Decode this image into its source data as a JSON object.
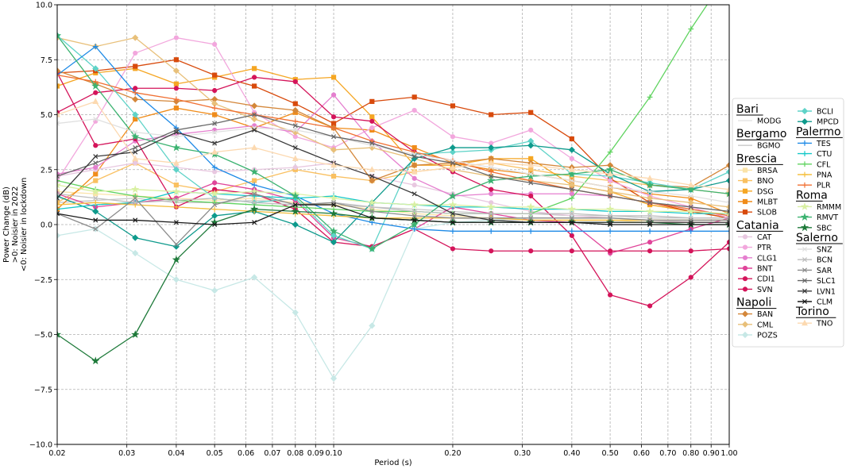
{
  "chart_data": {
    "type": "line",
    "xlabel": "Period (s)",
    "ylabel_lines": [
      "Power Change (dB)",
      ">0: Noisier in 2022",
      "<0: Noisier in lockdown"
    ],
    "x_scale": "log",
    "xlim": [
      0.02,
      1.0
    ],
    "ylim": [
      -10.0,
      10.0
    ],
    "grid": true,
    "x": [
      0.02,
      0.025,
      0.0315,
      0.04,
      0.05,
      0.063,
      0.08,
      0.1,
      0.125,
      0.16,
      0.2,
      0.25,
      0.315,
      0.4,
      0.5,
      0.63,
      0.8,
      1.0
    ],
    "x_ticks": [
      {
        "v": 0.02,
        "label": "0.02"
      },
      {
        "v": 0.03,
        "label": "0.03"
      },
      {
        "v": 0.04,
        "label": "0.04"
      },
      {
        "v": 0.05,
        "label": "0.05"
      },
      {
        "v": 0.06,
        "label": "0.06"
      },
      {
        "v": 0.07,
        "label": "0.07"
      },
      {
        "v": 0.08,
        "label": "0.08"
      },
      {
        "v": 0.09,
        "label": "0.09"
      },
      {
        "v": 0.1,
        "label": "0.10"
      },
      {
        "v": 0.2,
        "label": "0.20"
      },
      {
        "v": 0.3,
        "label": "0.30"
      },
      {
        "v": 0.4,
        "label": "0.40"
      },
      {
        "v": 0.5,
        "label": "0.50"
      },
      {
        "v": 0.6,
        "label": "0.60"
      },
      {
        "v": 0.7,
        "label": "0.70"
      },
      {
        "v": 0.8,
        "label": "0.80"
      },
      {
        "v": 0.9,
        "label": "0.90"
      },
      {
        "v": 1.0,
        "label": "1.00"
      }
    ],
    "y_ticks": [
      {
        "v": 10,
        "label": "10.0"
      },
      {
        "v": 7.5,
        "label": "7.5"
      },
      {
        "v": 5,
        "label": "5.0"
      },
      {
        "v": 2.5,
        "label": "2.5"
      },
      {
        "v": 0,
        "label": "0.0"
      },
      {
        "v": -2.5,
        "label": "−2.5"
      },
      {
        "v": -5,
        "label": "−5.0"
      },
      {
        "v": -7.5,
        "label": "−7.5"
      },
      {
        "v": -10,
        "label": "−10.0"
      }
    ],
    "legend_placement": "right, outside",
    "groups": [
      {
        "name": "Bari",
        "series": [
          {
            "name": "MODG",
            "color": "#e6e6e6",
            "marker": "none",
            "values": [
              1.2,
              1.0,
              0.9,
              0.8,
              0.7,
              0.6,
              0.5,
              0.4,
              0.3,
              0.3,
              0.3,
              0.2,
              0.2,
              0.2,
              0.2,
              0.2,
              0.1,
              0.1
            ]
          }
        ]
      },
      {
        "name": "Bergamo",
        "series": [
          {
            "name": "BGMO",
            "color": "#c8c8c8",
            "marker": "none",
            "values": [
              1.0,
              1.1,
              1.2,
              1.0,
              1.0,
              1.1,
              1.0,
              0.9,
              0.8,
              0.7,
              0.6,
              0.5,
              0.5,
              0.4,
              0.4,
              0.3,
              0.3,
              0.3
            ]
          }
        ]
      },
      {
        "name": "Brescia",
        "series": [
          {
            "name": "BRSA",
            "color": "#fbe3a8",
            "marker": "square",
            "values": [
              1.5,
              1.4,
              1.3,
              1.2,
              1.1,
              1.2,
              1.0,
              0.9,
              0.7,
              0.5,
              0.4,
              0.3,
              0.2,
              0.2,
              0.2,
              0.1,
              0.1,
              0.1
            ]
          },
          {
            "name": "BNO",
            "color": "#f9c061",
            "marker": "square",
            "values": [
              1.0,
              2.0,
              2.8,
              1.8,
              1.5,
              2.0,
              2.5,
              2.2,
              2.0,
              2.4,
              2.6,
              2.8,
              2.5,
              2.2,
              2.0,
              1.8,
              1.6,
              1.4
            ]
          },
          {
            "name": "DSG",
            "color": "#f5a623",
            "marker": "square",
            "values": [
              6.3,
              6.9,
              7.1,
              6.4,
              6.7,
              7.1,
              6.6,
              6.7,
              4.9,
              2.7,
              2.7,
              3.0,
              3.0,
              1.8,
              1.5,
              0.9,
              0.6,
              0.3
            ]
          },
          {
            "name": "MLBT",
            "color": "#f08c1a",
            "marker": "square",
            "values": [
              0.7,
              2.3,
              4.8,
              5.3,
              5.0,
              4.4,
              5.1,
              4.4,
              4.3,
              3.5,
              2.8,
              2.5,
              2.3,
              2.0,
              1.7,
              1.4,
              1.2,
              0.5
            ]
          },
          {
            "name": "SLOB",
            "color": "#d84a0c",
            "marker": "square",
            "values": [
              6.9,
              7.0,
              7.2,
              7.5,
              6.8,
              6.3,
              5.5,
              4.6,
              5.6,
              5.8,
              5.4,
              5.0,
              5.1,
              3.9,
              2.1,
              1.0,
              0.6,
              0.3
            ]
          }
        ]
      },
      {
        "name": "Catania",
        "series": [
          {
            "name": "CAT",
            "color": "#e8c8e0",
            "marker": "circle",
            "values": [
              2.2,
              2.5,
              2.8,
              2.6,
              2.4,
              2.5,
              2.6,
              2.8,
              2.2,
              1.8,
              1.4,
              1.0,
              0.6,
              0.4,
              0.3,
              0.2,
              0.1,
              0.1
            ]
          },
          {
            "name": "PTR",
            "color": "#f2a7dd",
            "marker": "circle",
            "values": [
              2.0,
              4.7,
              7.8,
              8.5,
              8.2,
              5.1,
              4.0,
              3.5,
              4.4,
              5.2,
              4.0,
              3.7,
              4.3,
              3.0,
              2.0,
              1.3,
              0.8,
              0.3
            ]
          },
          {
            "name": "CLG1",
            "color": "#e57fcf",
            "marker": "circle",
            "values": [
              2.3,
              2.6,
              3.8,
              4.1,
              4.3,
              4.5,
              4.2,
              5.9,
              3.8,
              2.1,
              1.3,
              1.4,
              1.4,
              1.4,
              1.3,
              1.0,
              0.7,
              0.4
            ]
          },
          {
            "name": "BNT",
            "color": "#e0459a",
            "marker": "circle",
            "values": [
              1.4,
              0.8,
              1.0,
              1.2,
              1.9,
              1.6,
              1.1,
              -0.6,
              -1.0,
              -0.2,
              0.8,
              0.5,
              0.2,
              0.1,
              -1.3,
              -0.8,
              -0.2,
              0.3
            ]
          },
          {
            "name": "CDI1",
            "color": "#d4145a",
            "marker": "circle",
            "values": [
              6.9,
              3.6,
              3.9,
              0.8,
              1.6,
              1.4,
              0.7,
              -0.8,
              -1.0,
              -0.2,
              -1.1,
              -1.2,
              -1.2,
              -1.2,
              -1.2,
              -1.2,
              -1.2,
              -1.1
            ]
          },
          {
            "name": "SVN",
            "color": "#d4145a",
            "marker": "circle",
            "values": [
              5.1,
              6.0,
              6.2,
              6.2,
              6.1,
              6.7,
              6.5,
              4.9,
              4.7,
              3.3,
              2.4,
              1.6,
              1.3,
              -0.5,
              -3.2,
              -3.7,
              -2.4,
              -0.8
            ]
          }
        ]
      },
      {
        "name": "Napoli",
        "series": [
          {
            "name": "BAN",
            "color": "#d4873a",
            "marker": "diamond",
            "values": [
              7.0,
              6.4,
              5.7,
              5.6,
              5.7,
              5.4,
              5.2,
              4.4,
              2.0,
              2.7,
              2.8,
              3.0,
              2.8,
              2.6,
              2.7,
              1.8,
              1.7,
              2.7
            ]
          },
          {
            "name": "CML",
            "color": "#e8c07a",
            "marker": "diamond",
            "values": [
              8.5,
              8.1,
              8.5,
              7.0,
              5.5,
              4.8,
              4.2,
              3.4,
              3.5,
              3.0,
              2.5,
              2.2,
              2.0,
              1.8,
              1.5,
              1.2,
              1.0,
              0.8
            ]
          },
          {
            "name": "POZS",
            "color": "#c7e8e6",
            "marker": "diamond",
            "values": [
              -0.5,
              -0.2,
              -1.3,
              -2.5,
              -3.0,
              -2.4,
              -4.0,
              -7.0,
              -4.6,
              -0.2,
              0.1,
              0.2,
              0.3,
              0.3,
              0.3,
              0.2,
              0.2,
              0.2
            ]
          },
          {
            "name": "BCLI",
            "color": "#5fd3c8",
            "marker": "diamond",
            "values": [
              8.6,
              7.1,
              5.0,
              2.5,
              1.2,
              1.0,
              1.2,
              -0.5,
              -1.1,
              3.2,
              3.3,
              3.4,
              3.8,
              2.3,
              2.2,
              1.9,
              1.6,
              2.4
            ]
          },
          {
            "name": "MPCD",
            "color": "#0e9a8c",
            "marker": "diamond",
            "values": [
              1.3,
              0.6,
              -0.6,
              -1.0,
              0.4,
              0.6,
              0.0,
              -0.8,
              1.0,
              3.0,
              3.5,
              3.5,
              3.6,
              3.4,
              2.3,
              1.5,
              1.6,
              2.0
            ]
          }
        ]
      },
      {
        "name": "Palermo",
        "series": [
          {
            "name": "TES",
            "color": "#1e8ae6",
            "marker": "plus",
            "values": [
              6.8,
              8.1,
              6.0,
              4.4,
              2.6,
              1.8,
              1.3,
              0.5,
              0.1,
              -0.2,
              -0.3,
              -0.3,
              -0.3,
              -0.3,
              -0.3,
              -0.3,
              -0.3,
              -0.3
            ]
          },
          {
            "name": "CTU",
            "color": "#14c8c8",
            "marker": "plus",
            "values": [
              0.7,
              0.9,
              1.0,
              1.5,
              1.4,
              1.3,
              1.2,
              1.3,
              1.0,
              0.9,
              0.8,
              0.8,
              0.7,
              0.7,
              0.6,
              0.6,
              0.5,
              0.5
            ]
          },
          {
            "name": "CFL",
            "color": "#5fd35f",
            "marker": "plus",
            "values": [
              2.0,
              1.6,
              1.3,
              1.1,
              1.0,
              0.9,
              0.8,
              0.7,
              0.6,
              0.6,
              0.5,
              0.5,
              0.5,
              1.2,
              3.3,
              5.8,
              8.9,
              11.5
            ]
          },
          {
            "name": "PNA",
            "color": "#f5c040",
            "marker": "plus",
            "values": [
              0.9,
              1.0,
              0.9,
              0.8,
              0.7,
              0.6,
              0.5,
              0.4,
              0.3,
              0.3,
              0.3,
              0.3,
              0.2,
              0.2,
              0.2,
              0.2,
              0.2,
              0.2
            ]
          },
          {
            "name": "PLR",
            "color": "#f07033",
            "marker": "plus",
            "values": [
              6.8,
              6.5,
              6.0,
              5.7,
              5.3,
              5.0,
              4.7,
              4.4,
              3.8,
              3.3,
              2.9,
              2.4,
              2.0,
              1.6,
              1.3,
              1.0,
              0.7,
              0.4
            ]
          }
        ]
      },
      {
        "name": "Roma",
        "series": [
          {
            "name": "RMMM",
            "color": "#d9f0a3",
            "marker": "star",
            "values": [
              1.8,
              1.5,
              1.6,
              1.5,
              1.4,
              1.5,
              1.4,
              1.2,
              1.0,
              0.9,
              0.9,
              0.8,
              0.8,
              0.7,
              0.7,
              0.6,
              0.6,
              0.5
            ]
          },
          {
            "name": "RMVT",
            "color": "#3cb371",
            "marker": "star",
            "values": [
              8.6,
              6.3,
              4.0,
              3.5,
              3.2,
              2.4,
              1.3,
              -0.3,
              -1.1,
              0.0,
              1.3,
              2.0,
              2.2,
              2.3,
              2.5,
              1.8,
              1.6,
              1.4
            ]
          },
          {
            "name": "SBC",
            "color": "#1e7a3a",
            "marker": "star",
            "values": [
              -5.0,
              -6.2,
              -5.0,
              -1.6,
              0.1,
              0.7,
              0.6,
              0.5,
              0.3,
              0.2,
              0.1,
              0.1,
              0.1,
              0.1,
              0.1,
              0.1,
              0.0,
              0.0
            ]
          }
        ]
      },
      {
        "name": "Salerno",
        "series": [
          {
            "name": "SNZ",
            "color": "#e0e0e0",
            "marker": "x",
            "values": [
              4.6,
              4.8,
              4.2,
              4.0,
              4.2,
              4.4,
              4.3,
              4.0,
              3.6,
              3.2,
              2.9,
              2.6,
              2.3,
              2.0,
              1.7,
              1.5,
              1.3,
              1.0
            ]
          },
          {
            "name": "BCN",
            "color": "#bdbdbd",
            "marker": "x",
            "values": [
              1.4,
              1.2,
              1.0,
              1.1,
              1.2,
              1.0,
              0.9,
              1.0,
              0.8,
              0.6,
              0.5,
              0.5,
              0.5,
              0.5,
              0.4,
              0.4,
              0.3,
              0.3
            ]
          },
          {
            "name": "SAR",
            "color": "#8c8c8c",
            "marker": "x",
            "values": [
              0.5,
              -0.2,
              1.2,
              -0.9,
              0.9,
              1.4,
              0.9,
              1.0,
              0.6,
              0.4,
              0.3,
              0.3,
              0.3,
              0.3,
              0.3,
              0.2,
              0.2,
              0.2
            ]
          },
          {
            "name": "SLC1",
            "color": "#666666",
            "marker": "x",
            "values": [
              2.2,
              2.8,
              3.5,
              4.3,
              4.6,
              5.0,
              4.5,
              4.0,
              3.7,
              3.1,
              2.8,
              2.2,
              1.9,
              1.6,
              1.3,
              1.0,
              0.8,
              0.6
            ]
          },
          {
            "name": "LVN1",
            "color": "#3a3a3a",
            "marker": "x",
            "values": [
              1.2,
              3.1,
              3.3,
              4.2,
              3.7,
              4.3,
              3.5,
              2.8,
              2.2,
              1.4,
              0.5,
              0.2,
              0.1,
              0.1,
              0.1,
              0.1,
              0.1,
              0.1
            ]
          },
          {
            "name": "CLM",
            "color": "#1a1a1a",
            "marker": "x",
            "values": [
              0.5,
              0.2,
              0.2,
              0.1,
              0.0,
              0.1,
              0.9,
              0.9,
              0.3,
              0.2,
              0.1,
              0.1,
              0.1,
              0.1,
              0.0,
              0.0,
              0.0,
              0.0
            ]
          }
        ]
      },
      {
        "name": "Torino",
        "series": [
          {
            "name": "TNO",
            "color": "#fcd9b0",
            "marker": "triangle",
            "values": [
              5.0,
              5.6,
              3.0,
              2.8,
              3.3,
              3.5,
              3.0,
              2.7,
              2.5,
              2.4,
              2.6,
              2.8,
              2.7,
              2.5,
              2.3,
              2.1,
              1.8,
              1.6
            ]
          }
        ]
      }
    ]
  }
}
